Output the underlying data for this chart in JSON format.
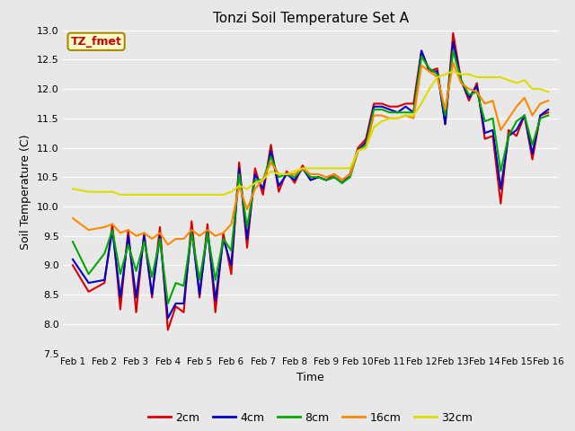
{
  "title": "Tonzi Soil Temperature Set A",
  "xlabel": "Time",
  "ylabel": "Soil Temperature (C)",
  "annotation": "TZ_fmet",
  "annotation_color": "#cc0000",
  "annotation_bg": "#ffffcc",
  "annotation_border": "#aa8800",
  "ylim": [
    7.5,
    13.0
  ],
  "yticks": [
    7.5,
    8.0,
    8.5,
    9.0,
    9.5,
    10.0,
    10.5,
    11.0,
    11.5,
    12.0,
    12.5,
    13.0
  ],
  "xtick_labels": [
    "Feb 1",
    "Feb 2",
    "Feb 3",
    "Feb 4",
    "Feb 5",
    "Feb 6",
    "Feb 7",
    "Feb 8",
    "Feb 9",
    "Feb 10",
    "Feb 11",
    "Feb 12",
    "Feb 13",
    "Feb 14",
    "Feb 15",
    "Feb 16"
  ],
  "series_colors": [
    "#dd0000",
    "#0000cc",
    "#00aa00",
    "#ff8800",
    "#dddd00"
  ],
  "series_labels": [
    "2cm",
    "4cm",
    "8cm",
    "16cm",
    "32cm"
  ],
  "background_color": "#e8e8e8",
  "grid_color": "#ffffff",
  "line_width": 1.5,
  "x_2cm": [
    0,
    0.5,
    1,
    1.25,
    1.5,
    1.75,
    2,
    2.25,
    2.5,
    2.75,
    3,
    3.25,
    3.5,
    3.75,
    4,
    4.25,
    4.5,
    4.75,
    5,
    5.25,
    5.5,
    5.75,
    6,
    6.25,
    6.5,
    6.75,
    7,
    7.25,
    7.5,
    7.75,
    8,
    8.25,
    8.5,
    8.75,
    9,
    9.25,
    9.5,
    9.75,
    10,
    10.25,
    10.5,
    10.75,
    11,
    11.25,
    11.5,
    11.75,
    12,
    12.25,
    12.5,
    12.75,
    13,
    13.25,
    13.5,
    13.75,
    14,
    14.25,
    14.5,
    14.75,
    15
  ],
  "y_2cm": [
    9.0,
    8.55,
    8.7,
    9.7,
    8.25,
    9.6,
    8.2,
    9.55,
    8.45,
    9.65,
    7.9,
    8.3,
    8.2,
    9.75,
    8.45,
    9.7,
    8.2,
    9.55,
    8.85,
    10.75,
    9.3,
    10.65,
    10.2,
    11.05,
    10.25,
    10.6,
    10.4,
    10.7,
    10.45,
    10.5,
    10.45,
    10.55,
    10.45,
    10.55,
    11.0,
    11.15,
    11.75,
    11.75,
    11.7,
    11.7,
    11.75,
    11.75,
    12.65,
    12.3,
    12.35,
    11.4,
    12.95,
    12.15,
    11.8,
    12.1,
    11.15,
    11.2,
    10.05,
    11.3,
    11.2,
    11.55,
    10.8,
    11.55,
    11.6
  ],
  "x_4cm": [
    0,
    0.5,
    1,
    1.25,
    1.5,
    1.75,
    2,
    2.25,
    2.5,
    2.75,
    3,
    3.25,
    3.5,
    3.75,
    4,
    4.25,
    4.5,
    4.75,
    5,
    5.25,
    5.5,
    5.75,
    6,
    6.25,
    6.5,
    6.75,
    7,
    7.25,
    7.5,
    7.75,
    8,
    8.25,
    8.5,
    8.75,
    9,
    9.25,
    9.5,
    9.75,
    10,
    10.25,
    10.5,
    10.75,
    11,
    11.25,
    11.5,
    11.75,
    12,
    12.25,
    12.5,
    12.75,
    13,
    13.25,
    13.5,
    13.75,
    14,
    14.25,
    14.5,
    14.75,
    15
  ],
  "y_4cm": [
    9.1,
    8.7,
    8.75,
    9.6,
    8.45,
    9.5,
    8.45,
    9.5,
    8.5,
    9.5,
    8.1,
    8.35,
    8.35,
    9.6,
    8.5,
    9.6,
    8.4,
    9.45,
    9.0,
    10.65,
    9.45,
    10.55,
    10.3,
    10.95,
    10.35,
    10.55,
    10.45,
    10.65,
    10.45,
    10.5,
    10.45,
    10.5,
    10.4,
    10.55,
    10.95,
    11.1,
    11.7,
    11.7,
    11.65,
    11.6,
    11.7,
    11.6,
    12.65,
    12.3,
    12.3,
    11.4,
    12.8,
    12.15,
    11.85,
    12.05,
    11.25,
    11.3,
    10.3,
    11.2,
    11.3,
    11.55,
    10.9,
    11.55,
    11.65
  ],
  "x_8cm": [
    0,
    0.5,
    1,
    1.25,
    1.5,
    1.75,
    2,
    2.25,
    2.5,
    2.75,
    3,
    3.25,
    3.5,
    3.75,
    4,
    4.25,
    4.5,
    4.75,
    5,
    5.25,
    5.5,
    5.75,
    6,
    6.25,
    6.5,
    6.75,
    7,
    7.25,
    7.5,
    7.75,
    8,
    8.25,
    8.5,
    8.75,
    9,
    9.25,
    9.5,
    9.75,
    10,
    10.25,
    10.5,
    10.75,
    11,
    11.25,
    11.5,
    11.75,
    12,
    12.25,
    12.5,
    12.75,
    13,
    13.25,
    13.5,
    13.75,
    14,
    14.25,
    14.5,
    14.75,
    15
  ],
  "y_8cm": [
    9.4,
    8.85,
    9.2,
    9.6,
    8.85,
    9.35,
    8.9,
    9.4,
    8.8,
    9.45,
    8.35,
    8.7,
    8.65,
    9.55,
    8.75,
    9.55,
    8.75,
    9.45,
    9.25,
    10.55,
    9.65,
    10.45,
    10.45,
    10.85,
    10.5,
    10.55,
    10.5,
    10.65,
    10.5,
    10.5,
    10.45,
    10.5,
    10.4,
    10.5,
    10.95,
    11.05,
    11.65,
    11.65,
    11.6,
    11.6,
    11.6,
    11.6,
    12.55,
    12.35,
    12.25,
    11.55,
    12.65,
    12.15,
    11.9,
    11.95,
    11.45,
    11.5,
    10.6,
    11.2,
    11.45,
    11.55,
    11.05,
    11.5,
    11.55
  ],
  "x_16cm": [
    0,
    0.5,
    1,
    1.25,
    1.5,
    1.75,
    2,
    2.25,
    2.5,
    2.75,
    3,
    3.25,
    3.5,
    3.75,
    4,
    4.25,
    4.5,
    4.75,
    5,
    5.25,
    5.5,
    5.75,
    6,
    6.25,
    6.5,
    6.75,
    7,
    7.25,
    7.5,
    7.75,
    8,
    8.25,
    8.5,
    8.75,
    9,
    9.25,
    9.5,
    9.75,
    10,
    10.25,
    10.5,
    10.75,
    11,
    11.25,
    11.5,
    11.75,
    12,
    12.25,
    12.5,
    12.75,
    13,
    13.25,
    13.5,
    13.75,
    14,
    14.25,
    14.5,
    14.75,
    15
  ],
  "y_16cm": [
    9.8,
    9.6,
    9.65,
    9.7,
    9.55,
    9.6,
    9.5,
    9.55,
    9.45,
    9.55,
    9.35,
    9.45,
    9.45,
    9.6,
    9.5,
    9.6,
    9.5,
    9.55,
    9.7,
    10.35,
    9.95,
    10.3,
    10.45,
    10.75,
    10.55,
    10.55,
    10.55,
    10.65,
    10.55,
    10.55,
    10.5,
    10.55,
    10.45,
    10.55,
    10.95,
    11.0,
    11.55,
    11.55,
    11.5,
    11.5,
    11.55,
    11.5,
    12.4,
    12.3,
    12.2,
    11.65,
    12.45,
    12.1,
    12.0,
    11.95,
    11.75,
    11.8,
    11.3,
    11.5,
    11.7,
    11.85,
    11.55,
    11.75,
    11.8
  ],
  "x_32cm": [
    0,
    0.5,
    1,
    1.25,
    1.5,
    1.75,
    2,
    2.25,
    2.5,
    2.75,
    3,
    3.25,
    3.5,
    3.75,
    4,
    4.25,
    4.5,
    4.75,
    5,
    5.25,
    5.5,
    5.75,
    6,
    6.25,
    6.5,
    6.75,
    7,
    7.25,
    7.5,
    7.75,
    8,
    8.25,
    8.5,
    8.75,
    9,
    9.25,
    9.5,
    9.75,
    10,
    10.25,
    10.5,
    10.75,
    11,
    11.25,
    11.5,
    11.75,
    12,
    12.25,
    12.5,
    12.75,
    13,
    13.25,
    13.5,
    13.75,
    14,
    14.25,
    14.5,
    14.75,
    15
  ],
  "y_32cm": [
    10.3,
    10.25,
    10.25,
    10.25,
    10.2,
    10.2,
    10.2,
    10.2,
    10.2,
    10.2,
    10.2,
    10.2,
    10.2,
    10.2,
    10.2,
    10.2,
    10.2,
    10.2,
    10.25,
    10.35,
    10.3,
    10.4,
    10.45,
    10.6,
    10.55,
    10.55,
    10.6,
    10.65,
    10.65,
    10.65,
    10.65,
    10.65,
    10.65,
    10.65,
    10.95,
    11.0,
    11.35,
    11.45,
    11.5,
    11.5,
    11.55,
    11.55,
    11.75,
    12.0,
    12.2,
    12.25,
    12.3,
    12.25,
    12.25,
    12.2,
    12.2,
    12.2,
    12.2,
    12.15,
    12.1,
    12.15,
    12.0,
    12.0,
    11.95
  ]
}
